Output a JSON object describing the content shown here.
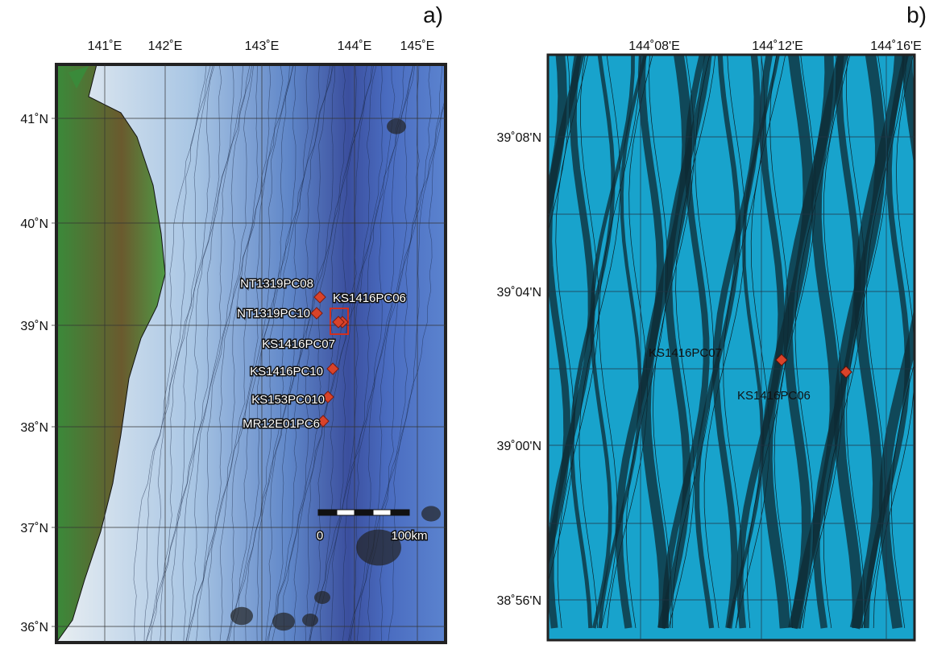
{
  "panel_a": {
    "label": "a)",
    "lon_ticks": [
      "141˚E",
      "142˚E",
      "143˚E",
      "144˚E",
      "145˚E"
    ],
    "lat_ticks": [
      "41˚N",
      "40˚N",
      "39˚N",
      "38˚N",
      "37˚N",
      "36˚N"
    ],
    "sites": [
      "NT1319PC08",
      "NT1319PC10",
      "KS1416PC06",
      "KS1416PC07",
      "KS1416PC10",
      "KS153PC010",
      "MR12E01PC6"
    ],
    "scale_bar": {
      "start": "0",
      "end": "100km"
    }
  },
  "panel_b": {
    "label": "b)",
    "lon_ticks": [
      "144˚08'E",
      "144˚12'E",
      "144˚16'E"
    ],
    "lat_ticks": [
      "39˚08'N",
      "39˚04'N",
      "39˚00'N",
      "38˚56'N"
    ],
    "sites": [
      "KS1416PC07",
      "KS1416PC06"
    ]
  }
}
